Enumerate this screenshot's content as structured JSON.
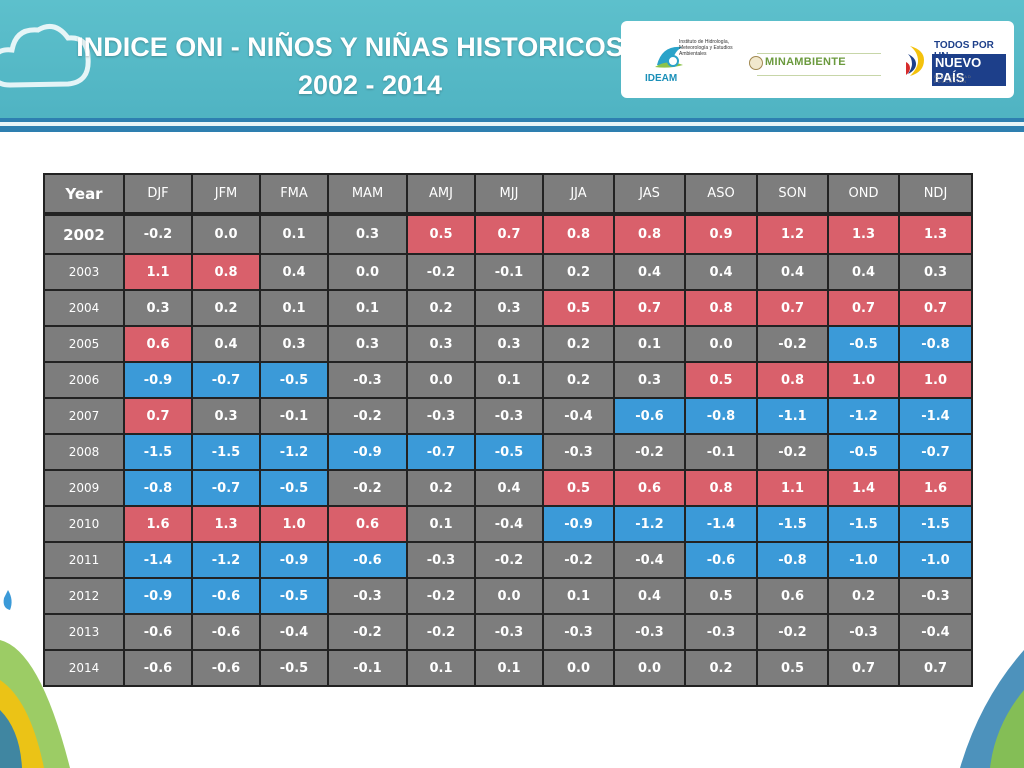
{
  "header": {
    "title_line1": "INDICE ONI - NIÑOS Y NIÑAS HISTORICOS",
    "title_line2": "2002 - 2014"
  },
  "logos": {
    "ideam": "IDEAM",
    "ideam_sub": "Instituto de Hidrología, Meteorología y Estudios Ambientales",
    "minambiente": "MINAMBIENTE",
    "todos_line1": "TODOS POR UN",
    "todos_line2": "NUEVO PAÍS",
    "todos_line3": "PAZ  EQUIDAD  EDUCACIÓN"
  },
  "table": {
    "headers": [
      "Year",
      "DJF",
      "JFM",
      "FMA",
      "MAM",
      "AMJ",
      "MJJ",
      "JJA",
      "JAS",
      "ASO",
      "SON",
      "OND",
      "NDJ"
    ],
    "rows": [
      {
        "year": "2002",
        "values": [
          "-0.2",
          "0.0",
          "0.1",
          "0.3",
          "0.5",
          "0.7",
          "0.8",
          "0.8",
          "0.9",
          "1.2",
          "1.3",
          "1.3"
        ],
        "colors": [
          "n",
          "n",
          "n",
          "n",
          "r",
          "r",
          "r",
          "r",
          "r",
          "r",
          "r",
          "r"
        ]
      },
      {
        "year": "2003",
        "values": [
          "1.1",
          "0.8",
          "0.4",
          "0.0",
          "-0.2",
          "-0.1",
          "0.2",
          "0.4",
          "0.4",
          "0.4",
          "0.4",
          "0.3"
        ],
        "colors": [
          "r",
          "r",
          "n",
          "n",
          "n",
          "n",
          "n",
          "n",
          "n",
          "n",
          "n",
          "n"
        ]
      },
      {
        "year": "2004",
        "values": [
          "0.3",
          "0.2",
          "0.1",
          "0.1",
          "0.2",
          "0.3",
          "0.5",
          "0.7",
          "0.8",
          "0.7",
          "0.7",
          "0.7"
        ],
        "colors": [
          "n",
          "n",
          "n",
          "n",
          "n",
          "n",
          "r",
          "r",
          "r",
          "r",
          "r",
          "r"
        ]
      },
      {
        "year": "2005",
        "values": [
          "0.6",
          "0.4",
          "0.3",
          "0.3",
          "0.3",
          "0.3",
          "0.2",
          "0.1",
          "0.0",
          "-0.2",
          "-0.5",
          "-0.8"
        ],
        "colors": [
          "r",
          "n",
          "n",
          "n",
          "n",
          "n",
          "n",
          "n",
          "n",
          "n",
          "b",
          "b"
        ]
      },
      {
        "year": "2006",
        "values": [
          "-0.9",
          "-0.7",
          "-0.5",
          "-0.3",
          "0.0",
          "0.1",
          "0.2",
          "0.3",
          "0.5",
          "0.8",
          "1.0",
          "1.0"
        ],
        "colors": [
          "b",
          "b",
          "b",
          "n",
          "n",
          "n",
          "n",
          "n",
          "r",
          "r",
          "r",
          "r"
        ]
      },
      {
        "year": "2007",
        "values": [
          "0.7",
          "0.3",
          "-0.1",
          "-0.2",
          "-0.3",
          "-0.3",
          "-0.4",
          "-0.6",
          "-0.8",
          "-1.1",
          "-1.2",
          "-1.4"
        ],
        "colors": [
          "r",
          "n",
          "n",
          "n",
          "n",
          "n",
          "n",
          "b",
          "b",
          "b",
          "b",
          "b"
        ]
      },
      {
        "year": "2008",
        "values": [
          "-1.5",
          "-1.5",
          "-1.2",
          "-0.9",
          "-0.7",
          "-0.5",
          "-0.3",
          "-0.2",
          "-0.1",
          "-0.2",
          "-0.5",
          "-0.7"
        ],
        "colors": [
          "b",
          "b",
          "b",
          "b",
          "b",
          "b",
          "n",
          "n",
          "n",
          "n",
          "b",
          "b"
        ]
      },
      {
        "year": "2009",
        "values": [
          "-0.8",
          "-0.7",
          "-0.5",
          "-0.2",
          "0.2",
          "0.4",
          "0.5",
          "0.6",
          "0.8",
          "1.1",
          "1.4",
          "1.6"
        ],
        "colors": [
          "b",
          "b",
          "b",
          "n",
          "n",
          "n",
          "r",
          "r",
          "r",
          "r",
          "r",
          "r"
        ]
      },
      {
        "year": "2010",
        "values": [
          "1.6",
          "1.3",
          "1.0",
          "0.6",
          "0.1",
          "-0.4",
          "-0.9",
          "-1.2",
          "-1.4",
          "-1.5",
          "-1.5",
          "-1.5"
        ],
        "colors": [
          "r",
          "r",
          "r",
          "r",
          "n",
          "n",
          "b",
          "b",
          "b",
          "b",
          "b",
          "b"
        ]
      },
      {
        "year": "2011",
        "values": [
          "-1.4",
          "-1.2",
          "-0.9",
          "-0.6",
          "-0.3",
          "-0.2",
          "-0.2",
          "-0.4",
          "-0.6",
          "-0.8",
          "-1.0",
          "-1.0"
        ],
        "colors": [
          "b",
          "b",
          "b",
          "b",
          "n",
          "n",
          "n",
          "n",
          "b",
          "b",
          "b",
          "b"
        ]
      },
      {
        "year": "2012",
        "values": [
          "-0.9",
          "-0.6",
          "-0.5",
          "-0.3",
          "-0.2",
          "0.0",
          "0.1",
          "0.4",
          "0.5",
          "0.6",
          "0.2",
          "-0.3"
        ],
        "colors": [
          "b",
          "b",
          "b",
          "n",
          "n",
          "n",
          "n",
          "n",
          "n",
          "n",
          "n",
          "n"
        ]
      },
      {
        "year": "2013",
        "values": [
          "-0.6",
          "-0.6",
          "-0.4",
          "-0.2",
          "-0.2",
          "-0.3",
          "-0.3",
          "-0.3",
          "-0.3",
          "-0.2",
          "-0.3",
          "-0.4"
        ],
        "colors": [
          "n",
          "n",
          "n",
          "n",
          "n",
          "n",
          "n",
          "n",
          "n",
          "n",
          "n",
          "n"
        ]
      },
      {
        "year": "2014",
        "values": [
          "-0.6",
          "-0.6",
          "-0.5",
          "-0.1",
          "0.1",
          "0.1",
          "0.0",
          "0.0",
          "0.2",
          "0.5",
          "0.7",
          "0.7"
        ],
        "colors": [
          "n",
          "n",
          "n",
          "n",
          "n",
          "n",
          "n",
          "n",
          "n",
          "n",
          "n",
          "n"
        ]
      }
    ],
    "column_widths": [
      80,
      68,
      68,
      68,
      79,
      68,
      68,
      71,
      71,
      72,
      71,
      71,
      73
    ],
    "color_map": {
      "n": "#7d7d7d",
      "r": "#d9606b",
      "b": "#3b9ad8"
    }
  }
}
